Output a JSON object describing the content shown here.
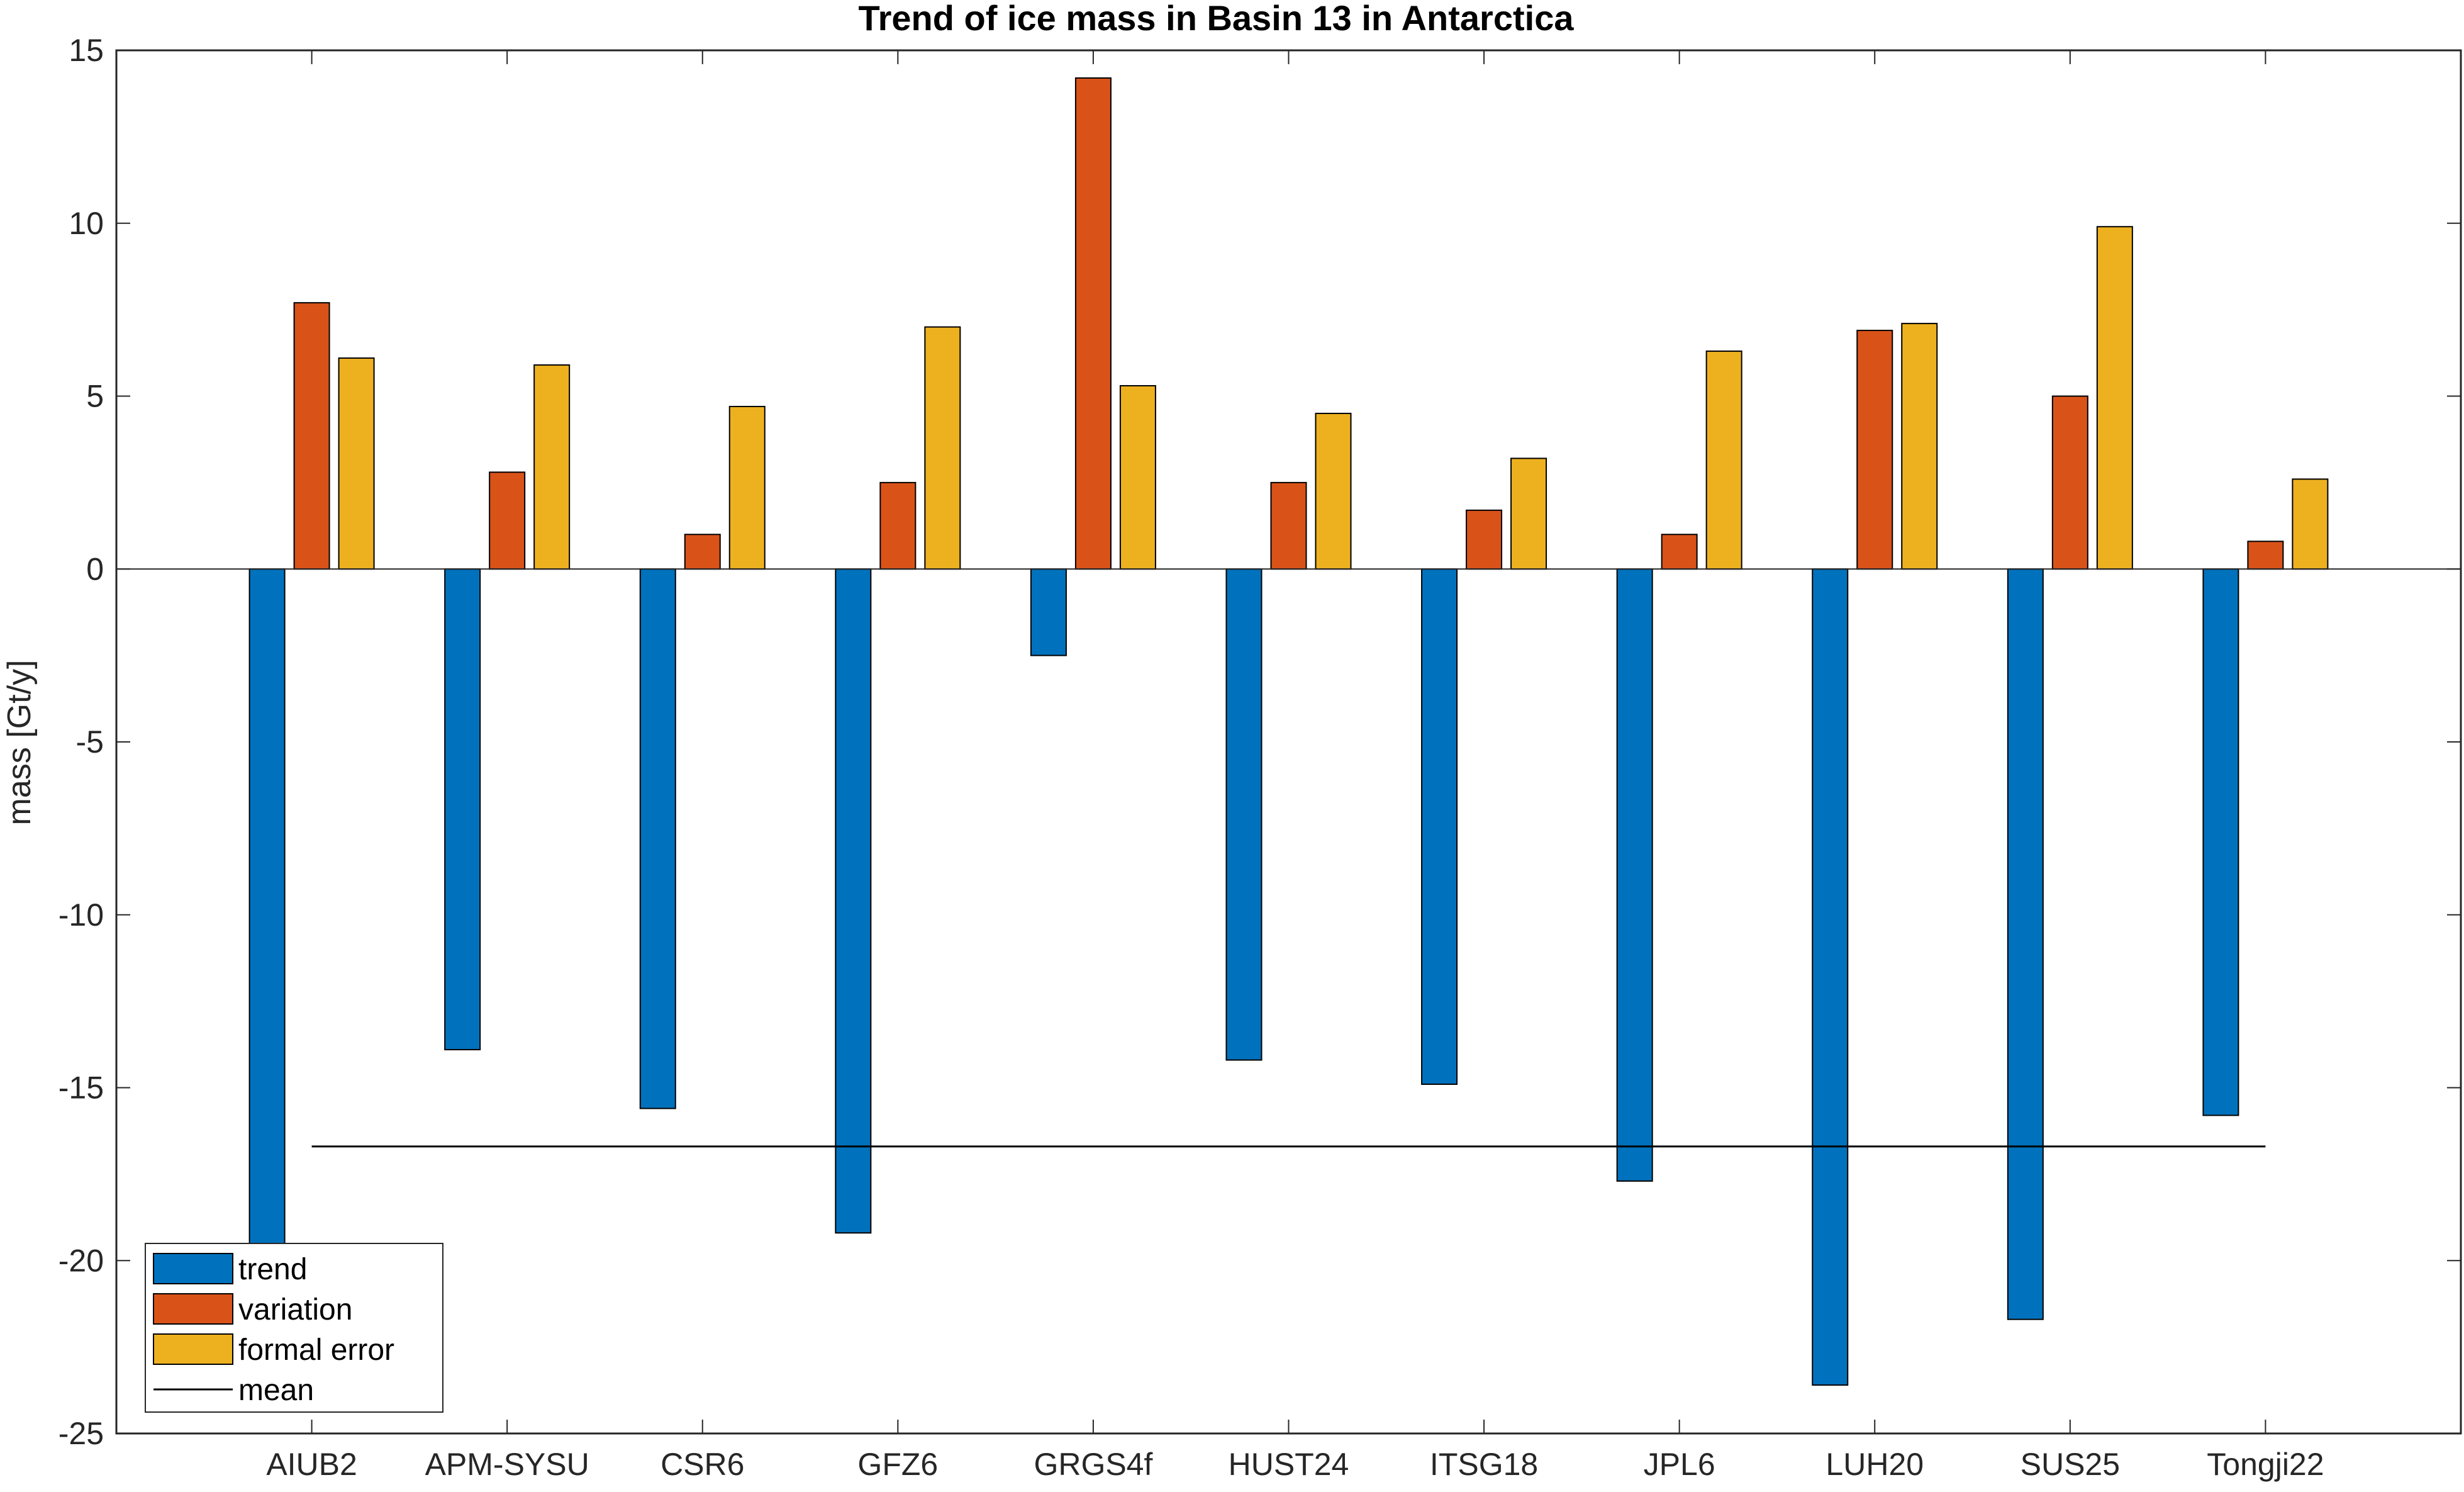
{
  "chart_data": {
    "type": "bar",
    "title": "Trend of ice mass in Basin 13 in Antarctica",
    "xlabel": "",
    "ylabel": "mass [Gt/y]",
    "ylim": [
      -25,
      15
    ],
    "yticks": [
      -25,
      -20,
      -15,
      -10,
      -5,
      0,
      5,
      10,
      15
    ],
    "grid": false,
    "legend_position": "bottom-left",
    "categories": [
      "AIUB2",
      "APM-SYSU",
      "CSR6",
      "GFZ6",
      "GRGS4f",
      "HUST24",
      "ITSG18",
      "JPL6",
      "LUH20",
      "SUS25",
      "Tongji22"
    ],
    "series": [
      {
        "name": "trend",
        "color": "#0072BD",
        "values": [
          -19.8,
          -13.9,
          -15.6,
          -19.2,
          -2.5,
          -14.2,
          -14.9,
          -17.7,
          -23.6,
          -21.7,
          -15.8
        ]
      },
      {
        "name": "variation",
        "color": "#D95319",
        "values": [
          7.7,
          2.8,
          1.0,
          2.5,
          14.2,
          2.5,
          1.7,
          1.0,
          6.9,
          5.0,
          0.8
        ]
      },
      {
        "name": "formal error",
        "color": "#EDB120",
        "values": [
          6.1,
          5.9,
          4.7,
          7.0,
          5.3,
          4.5,
          3.2,
          6.3,
          7.1,
          9.9,
          2.6
        ]
      }
    ],
    "mean": {
      "name": "mean",
      "value": -16.7,
      "color": "#000000"
    }
  }
}
